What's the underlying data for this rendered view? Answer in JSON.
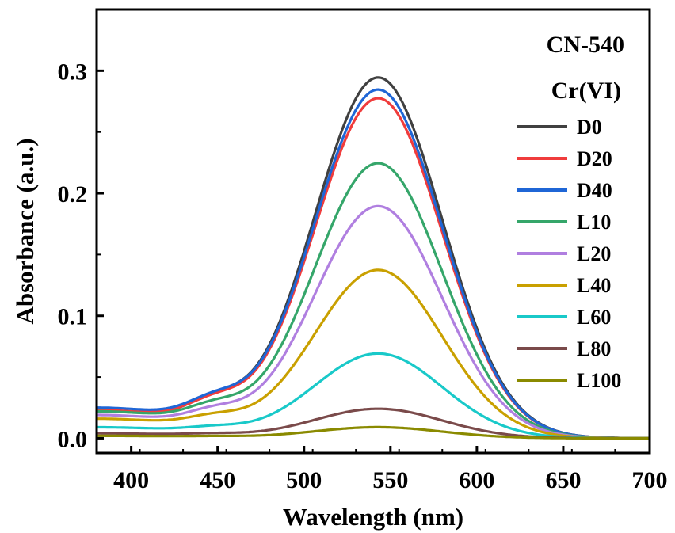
{
  "chart_data": {
    "type": "line",
    "title": "CN-540",
    "legend_title": "Cr(VI)",
    "legend_position": "right",
    "grid": false,
    "xlabel": "Wavelength (nm)",
    "ylabel": "Absorbance (a.u.)",
    "xlim": [
      380,
      700
    ],
    "ylim": [
      -0.012,
      0.35
    ],
    "xticks": [
      400,
      450,
      500,
      550,
      600,
      650,
      700
    ],
    "yticks": [
      0.0,
      0.1,
      0.2,
      0.3
    ],
    "ytick_labels": [
      "0.0",
      "0.1",
      "0.2",
      "0.3"
    ],
    "peak_wavelength": 543,
    "series": [
      {
        "name": "D0",
        "color": "#404040",
        "peak": 0.294,
        "base380": 0.022,
        "shoulder": 0.0545
      },
      {
        "name": "D20",
        "color": "#f03c3c",
        "peak": 0.277,
        "base380": 0.023,
        "shoulder": 0.051
      },
      {
        "name": "D40",
        "color": "#1f66d6",
        "peak": 0.284,
        "base380": 0.025,
        "shoulder": 0.0525
      },
      {
        "name": "L10",
        "color": "#35a66a",
        "peak": 0.224,
        "base380": 0.022,
        "shoulder": 0.042
      },
      {
        "name": "L20",
        "color": "#b07fe0",
        "peak": 0.189,
        "base380": 0.019,
        "shoulder": 0.035
      },
      {
        "name": "L40",
        "color": "#c9a000",
        "peak": 0.137,
        "base380": 0.016,
        "shoulder": 0.026
      },
      {
        "name": "L60",
        "color": "#19c9c9",
        "peak": 0.069,
        "base380": 0.009,
        "shoulder": 0.012
      },
      {
        "name": "L80",
        "color": "#7a4a4a",
        "peak": 0.024,
        "base380": 0.004,
        "shoulder": 0.005
      },
      {
        "name": "L100",
        "color": "#8a8a00",
        "peak": 0.009,
        "base380": 0.002,
        "shoulder": 0.002
      }
    ]
  }
}
